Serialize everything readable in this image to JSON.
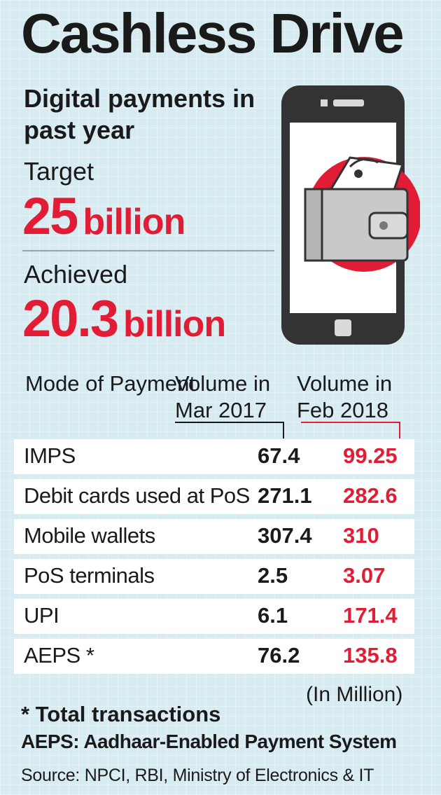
{
  "header": {
    "title": "Cashless Drive",
    "subtitle": "Digital payments in past year"
  },
  "metrics": {
    "target_label": "Target",
    "target_value": "25",
    "target_unit": "billion",
    "achieved_label": "Achieved",
    "achieved_value": "20.3",
    "achieved_unit": "billion"
  },
  "colors": {
    "accent": "#e11d36",
    "background": "#d7ecf2",
    "phone": "#333333"
  },
  "icon": "phone-wallet-icon",
  "chart_data": {
    "type": "table",
    "columns": [
      "Mode of Payment",
      "Volume in Mar 2017",
      "Volume in Feb 2018"
    ],
    "rows": [
      {
        "mode": "IMPS",
        "mar_2017": "67.4",
        "feb_2018": "99.25"
      },
      {
        "mode": "Debit cards used at PoS",
        "mar_2017": "271.1",
        "feb_2018": "282.6"
      },
      {
        "mode": "Mobile wallets",
        "mar_2017": "307.4",
        "feb_2018": "310"
      },
      {
        "mode": "PoS terminals",
        "mar_2017": "2.5",
        "feb_2018": "3.07"
      },
      {
        "mode": "UPI",
        "mar_2017": "6.1",
        "feb_2018": "171.4"
      },
      {
        "mode": "AEPS *",
        "mar_2017": "76.2",
        "feb_2018": "135.8"
      }
    ],
    "unit_note": "(In Million)"
  },
  "footer": {
    "note_total": "* Total transactions",
    "note_aeps": "AEPS: Aadhaar-Enabled Payment System",
    "source": "Source: NPCI, RBI, Ministry of Electronics & IT"
  }
}
